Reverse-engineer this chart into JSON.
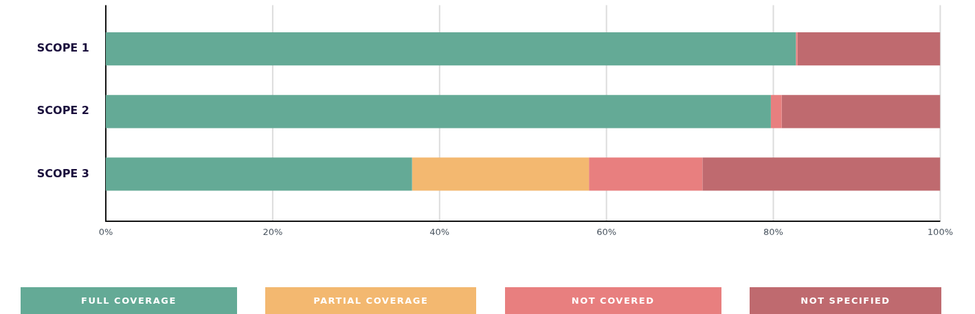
{
  "chart_data": {
    "type": "bar",
    "orientation": "horizontal",
    "stacked": true,
    "categories": [
      "SCOPE 1",
      "SCOPE 2",
      "SCOPE 3"
    ],
    "series": [
      {
        "name": "FULL COVERAGE",
        "color": "#64aa96",
        "values": [
          82.7,
          79.7,
          36.7
        ]
      },
      {
        "name": "PARTIAL COVERAGE",
        "color": "#f3b870",
        "values": [
          0,
          0,
          21.2
        ]
      },
      {
        "name": "NOT COVERED",
        "color": "#e87f7f",
        "values": [
          0.2,
          1.3,
          13.6
        ]
      },
      {
        "name": "NOT SPECIFIED",
        "color": "#bf6a6f",
        "values": [
          17.1,
          19.0,
          28.5
        ]
      }
    ],
    "xlim": [
      0,
      100
    ],
    "xticks": [
      {
        "value": 0,
        "label": "0%"
      },
      {
        "value": 20,
        "label": "20%"
      },
      {
        "value": 40,
        "label": "40%"
      },
      {
        "value": 60,
        "label": "60%"
      },
      {
        "value": 80,
        "label": "80%"
      },
      {
        "value": 100,
        "label": "100%"
      }
    ],
    "grid": "x",
    "legend": "bottom"
  }
}
